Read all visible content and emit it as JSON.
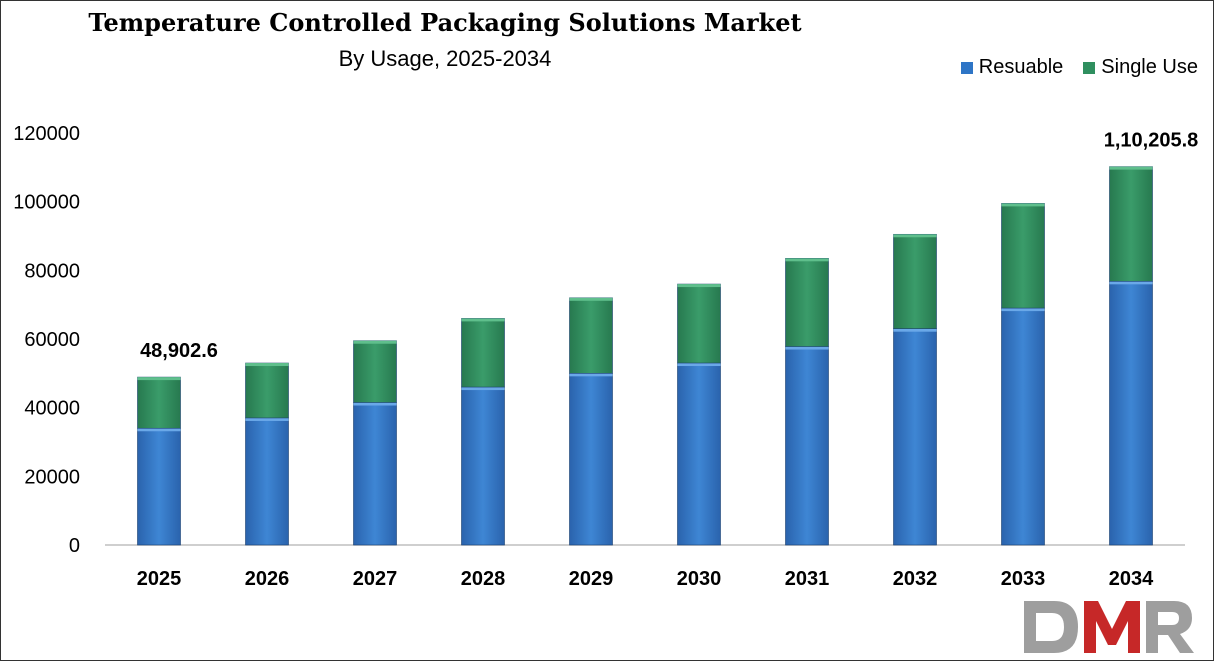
{
  "chart_data": {
    "type": "bar",
    "stacked": true,
    "title": "Temperature Controlled Packaging Solutions Market",
    "subtitle": "By Usage, 2025-2034",
    "xlabel": "",
    "ylabel": "",
    "ylim": [
      0,
      120000
    ],
    "yticks": [
      "0",
      "20000",
      "40000",
      "60000",
      "80000",
      "100000",
      "120000"
    ],
    "yticks_values": [
      0,
      20000,
      40000,
      60000,
      80000,
      100000,
      120000
    ],
    "categories": [
      "2025",
      "2026",
      "2027",
      "2028",
      "2029",
      "2030",
      "2031",
      "2032",
      "2033",
      "2034"
    ],
    "series": [
      {
        "name": "Resuable",
        "color": "#2e75c6",
        "values": [
          34000,
          37000,
          41500,
          46000,
          50000,
          53000,
          57800,
          63000,
          69000,
          76800
        ]
      },
      {
        "name": "Single Use",
        "color": "#2f8f5f",
        "values": [
          14902.6,
          16000,
          18000,
          20000,
          22000,
          23000,
          25700,
          27500,
          30500,
          33405.8
        ]
      }
    ],
    "totals": [
      48902.6,
      53000,
      59500,
      66000,
      72000,
      76000,
      83500,
      90500,
      99500,
      110205.8
    ],
    "annotations": [
      {
        "category": "2025",
        "text": "48,902.6"
      },
      {
        "category": "2034",
        "text": "1,10,205.8"
      }
    ],
    "legend_position": "top-right",
    "grid": false
  },
  "logo": {
    "text": "DMR",
    "colors": [
      "#9e9e9e",
      "#c62828",
      "#9e9e9e"
    ]
  }
}
